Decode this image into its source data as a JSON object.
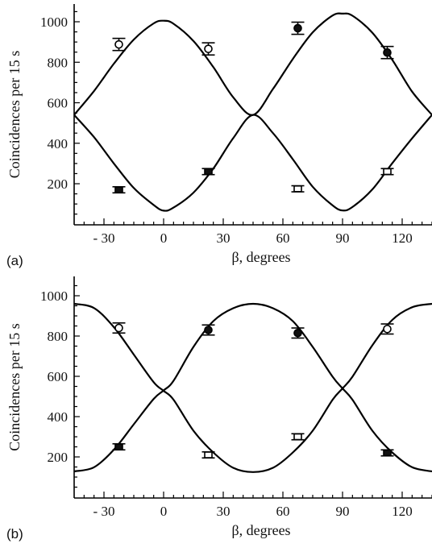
{
  "chart_data": [
    {
      "type": "line",
      "panel_label": "(a)",
      "xlabel": "β, degrees",
      "ylabel": "Coincidences per 15 s",
      "xlim": [
        -45,
        135
      ],
      "ylim": [
        0,
        1100
      ],
      "xticks": [
        -30,
        0,
        30,
        60,
        90,
        120
      ],
      "xtick_labels": [
        "- 30",
        "0",
        "30",
        "60",
        "90",
        "120"
      ],
      "yticks": [
        200,
        400,
        600,
        800,
        1000
      ],
      "grid": false,
      "legend": "none",
      "series": [
        {
          "marker": "open-circle",
          "x": [
            -22.5,
            22.5
          ],
          "y": [
            888,
            866
          ],
          "yerr": [
            30,
            30
          ]
        },
        {
          "marker": "filled-circle",
          "x": [
            67.5,
            112.5
          ],
          "y": [
            968,
            848
          ],
          "yerr": [
            30,
            30
          ]
        },
        {
          "marker": "filled-square",
          "x": [
            -22.5,
            22.5
          ],
          "y": [
            170,
            260
          ],
          "yerr": [
            15,
            15
          ]
        },
        {
          "marker": "open-square",
          "x": [
            67.5,
            112.5
          ],
          "y": [
            175,
            260
          ],
          "yerr": [
            15,
            15
          ]
        }
      ],
      "curves": [
        {
          "style": "solid",
          "x": [
            -45,
            -35,
            -25,
            -15,
            -5,
            0,
            5,
            15,
            25,
            35,
            45,
            55,
            65,
            75,
            85,
            90,
            95,
            105,
            115,
            125,
            135
          ],
          "y": [
            540,
            658,
            793,
            912,
            992,
            1005,
            990,
            905,
            776,
            627,
            540,
            668,
            816,
            948,
            1031,
            1040,
            1030,
            946,
            812,
            655,
            540
          ]
        },
        {
          "style": "solid",
          "x": [
            -45,
            -35,
            -25,
            -15,
            -5,
            0,
            5,
            15,
            25,
            35,
            45,
            55,
            65,
            75,
            85,
            90,
            95,
            105,
            115,
            125,
            135
          ],
          "y": [
            540,
            430,
            300,
            179,
            95,
            67,
            82,
            156,
            275,
            425,
            540,
            450,
            321,
            185,
            93,
            68,
            85,
            172,
            301,
            424,
            540
          ]
        }
      ]
    },
    {
      "type": "line",
      "panel_label": "(b)",
      "xlabel": "β, degrees",
      "ylabel": "Coincidences per 15 s",
      "xlim": [
        -45,
        135
      ],
      "ylim": [
        0,
        1100
      ],
      "xticks": [
        -30,
        0,
        30,
        60,
        90,
        120
      ],
      "xtick_labels": [
        "- 30",
        "0",
        "30",
        "60",
        "90",
        "120"
      ],
      "yticks": [
        200,
        400,
        600,
        800,
        1000
      ],
      "grid": false,
      "legend": "none",
      "series": [
        {
          "marker": "open-circle",
          "x": [
            -22.5,
            112.5
          ],
          "y": [
            840,
            835
          ],
          "yerr": [
            25,
            25
          ]
        },
        {
          "marker": "filled-circle",
          "x": [
            22.5,
            67.5
          ],
          "y": [
            830,
            815
          ],
          "yerr": [
            25,
            25
          ]
        },
        {
          "marker": "filled-square",
          "x": [
            -22.5,
            112.5
          ],
          "y": [
            250,
            220
          ],
          "yerr": [
            15,
            15
          ]
        },
        {
          "marker": "open-square",
          "x": [
            22.5,
            67.5
          ],
          "y": [
            210,
            300
          ],
          "yerr": [
            15,
            15
          ]
        }
      ],
      "curves": [
        {
          "style": "solid",
          "x": [
            -45,
            -35,
            -25,
            -15,
            -5,
            0,
            5,
            15,
            25,
            35,
            45,
            55,
            65,
            75,
            85,
            90,
            95,
            105,
            115,
            125,
            135
          ],
          "y": [
            960,
            939,
            844,
            708,
            571,
            528,
            484,
            330,
            222,
            146,
            125,
            146,
            222,
            330,
            484,
            540,
            598,
            754,
            880,
            943,
            960
          ]
        },
        {
          "style": "solid",
          "x": [
            -45,
            -35,
            -25,
            -15,
            -5,
            0,
            5,
            15,
            25,
            35,
            45,
            55,
            65,
            75,
            85,
            90,
            95,
            105,
            115,
            125,
            135
          ],
          "y": [
            128,
            149,
            236,
            362,
            488,
            530,
            578,
            746,
            874,
            938,
            960,
            938,
            874,
            746,
            598,
            540,
            484,
            330,
            222,
            149,
            128
          ]
        }
      ]
    }
  ]
}
